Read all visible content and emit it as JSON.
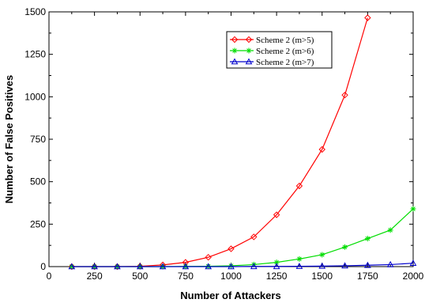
{
  "chart_data": {
    "type": "line",
    "title": "",
    "xlabel": "Number of Attackers",
    "ylabel": "Number of False Positives",
    "xlim": [
      0,
      2000
    ],
    "ylim": [
      0,
      1500
    ],
    "x_ticks": [
      "0",
      "250",
      "500",
      "750",
      "1000",
      "1250",
      "1500",
      "1750",
      "2000"
    ],
    "y_ticks": [
      "0",
      "250",
      "500",
      "750",
      "1000",
      "1250",
      "1500"
    ],
    "grid": false,
    "legend_position": "top-right",
    "series": [
      {
        "name": "Scheme 2 (m>5)",
        "color": "#ff0000",
        "marker": "diamond",
        "x": [
          125,
          250,
          375,
          500,
          625,
          750,
          875,
          1000,
          1125,
          1250,
          1375,
          1500,
          1625,
          1750
        ],
        "y": [
          0,
          0,
          0,
          2,
          10,
          25,
          55,
          105,
          175,
          305,
          475,
          690,
          1010,
          1465
        ]
      },
      {
        "name": "Scheme 2 (m>6)",
        "color": "#00dd00",
        "marker": "asterisk",
        "x": [
          125,
          250,
          375,
          500,
          625,
          750,
          875,
          1000,
          1125,
          1250,
          1375,
          1500,
          1625,
          1750,
          1875,
          2000
        ],
        "y": [
          0,
          0,
          0,
          0,
          0,
          1,
          2,
          5,
          12,
          25,
          45,
          70,
          115,
          165,
          215,
          340
        ]
      },
      {
        "name": "Scheme 2 (m>7)",
        "color": "#0000cc",
        "marker": "triangle",
        "x": [
          125,
          250,
          375,
          500,
          625,
          750,
          875,
          1000,
          1125,
          1250,
          1375,
          1500,
          1625,
          1750,
          1875,
          2000
        ],
        "y": [
          0,
          0,
          0,
          0,
          0,
          0,
          0,
          0,
          1,
          1,
          2,
          3,
          5,
          8,
          12,
          20
        ]
      }
    ]
  }
}
